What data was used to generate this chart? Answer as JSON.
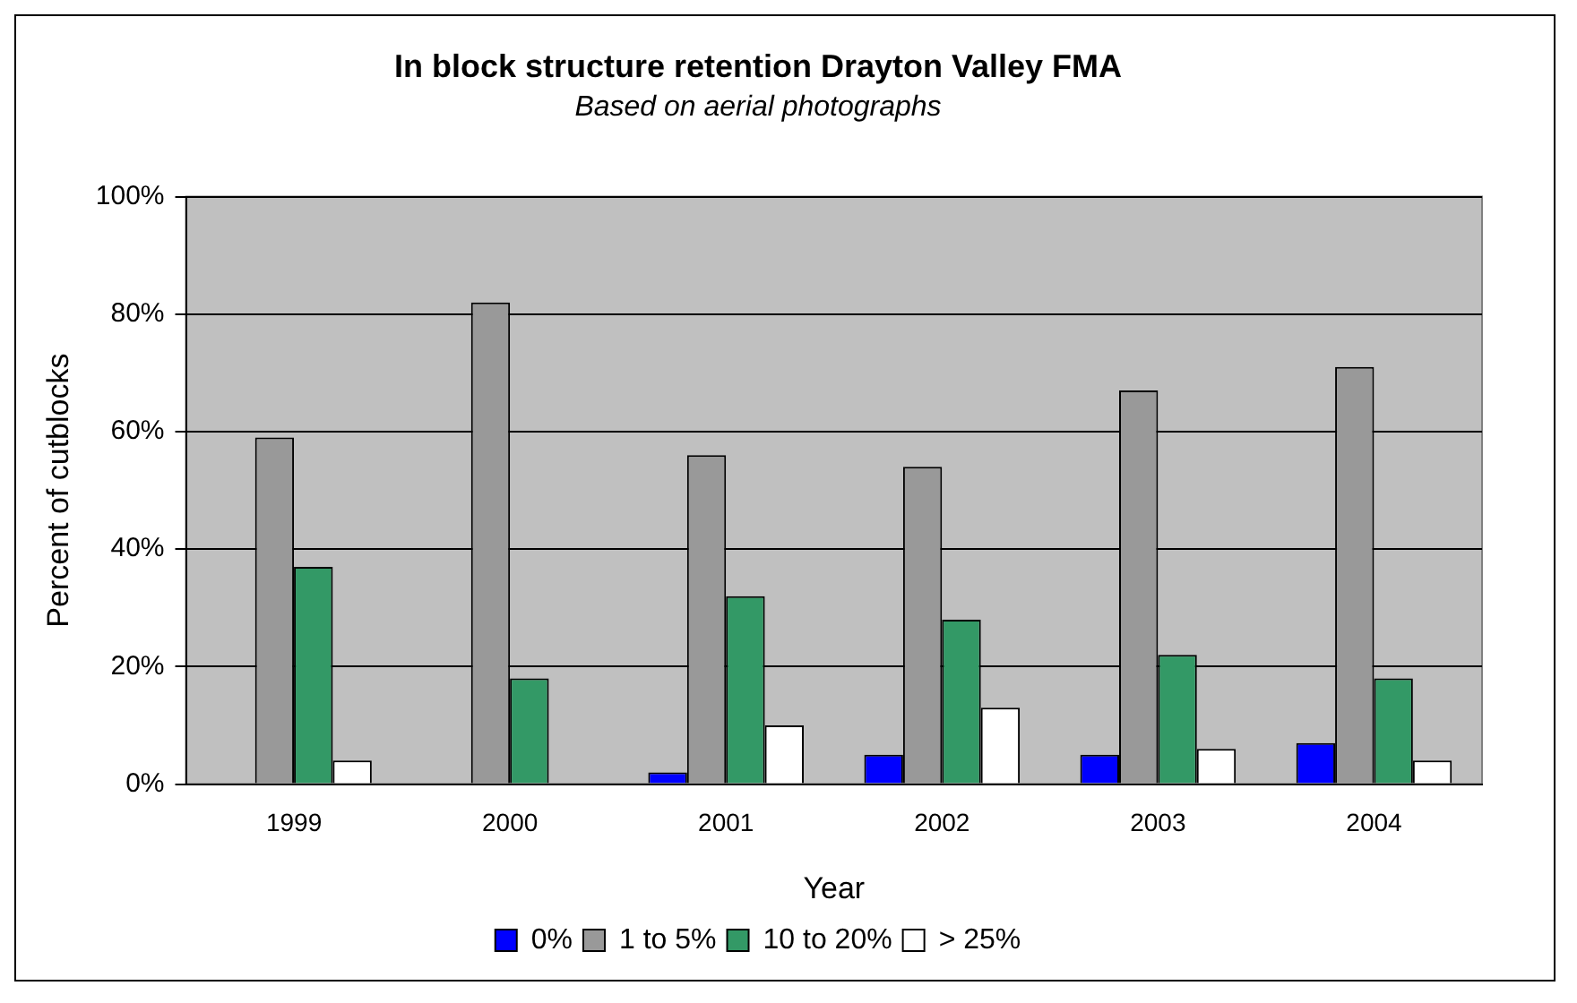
{
  "chart_data": {
    "type": "bar",
    "title": "In block structure retention Drayton Valley FMA",
    "subtitle": "Based on aerial photographs",
    "xlabel": "Year",
    "ylabel": "Percent of cutblocks",
    "categories": [
      "1999",
      "2000",
      "2001",
      "2002",
      "2003",
      "2004"
    ],
    "series": [
      {
        "name": "0%",
        "color": "#0000ff",
        "values": [
          0,
          0,
          2,
          5,
          5,
          7
        ]
      },
      {
        "name": "1 to 5%",
        "color": "#999999",
        "values": [
          59,
          82,
          56,
          54,
          67,
          71
        ]
      },
      {
        "name": "10 to 20%",
        "color": "#339966",
        "values": [
          37,
          18,
          32,
          28,
          22,
          18
        ]
      },
      {
        "name": "> 25%",
        "color": "#ffffff",
        "values": [
          4,
          0,
          10,
          13,
          6,
          4
        ]
      }
    ],
    "ylim": [
      0,
      100
    ],
    "yticks": [
      {
        "value": 0,
        "label": "0%"
      },
      {
        "value": 20,
        "label": "20%"
      },
      {
        "value": 40,
        "label": "40%"
      },
      {
        "value": 60,
        "label": "60%"
      },
      {
        "value": 80,
        "label": "80%"
      },
      {
        "value": 100,
        "label": "100%"
      }
    ],
    "grid": "y",
    "legend": "bottom"
  }
}
